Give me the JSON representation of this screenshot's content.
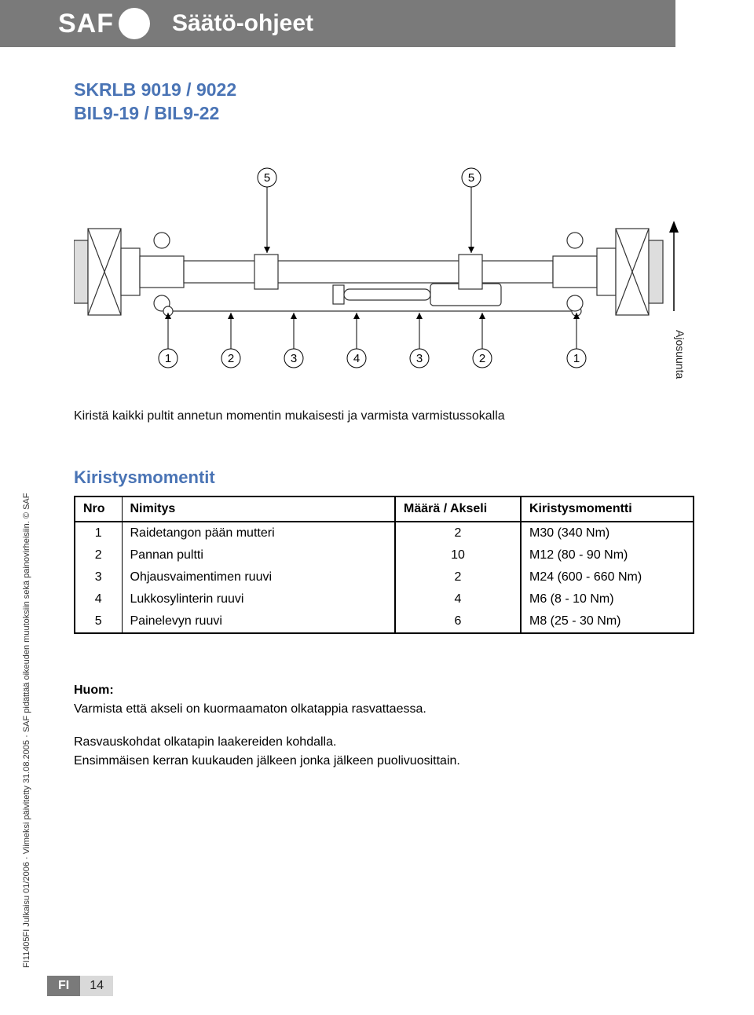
{
  "header": {
    "logo_text": "SAF",
    "title": "Säätö-ohjeet"
  },
  "model": {
    "line1": "SKRLB 9019 / 9022",
    "line2": "BIL9-19 / BIL9-22"
  },
  "diagram": {
    "ajosuunta_label": "Ajosuunta",
    "top_callouts": [
      "5",
      "5"
    ],
    "bottom_callouts": [
      "1",
      "2",
      "3",
      "4",
      "3",
      "2",
      "1"
    ],
    "callout_style": {
      "circle_radius": 12,
      "stroke_color": "#000000",
      "fill_color": "#ffffff",
      "font_size": 15,
      "line_color": "#000000"
    },
    "axle_style": {
      "outline_color": "#333333",
      "fill_color": "#ffffff",
      "hatch_color": "#888888"
    },
    "arrow_color": "#000000"
  },
  "instruction_text": "Kiristä kaikki pultit annetun momentin mukaisesti ja varmista varmistussokalla",
  "torque_section": {
    "title": "Kiristysmomentit",
    "columns": [
      "Nro",
      "Nimitys",
      "Määrä / Akseli",
      "Kiristysmomentti"
    ],
    "rows": [
      {
        "nro": "1",
        "name": "Raidetangon pään mutteri",
        "qty": "2",
        "torque": "M30 (340 Nm)"
      },
      {
        "nro": "2",
        "name": "Pannan pultti",
        "qty": "10",
        "torque": "M12 (80 - 90 Nm)"
      },
      {
        "nro": "3",
        "name": "Ohjausvaimentimen ruuvi",
        "qty": "2",
        "torque": "M24 (600 - 660 Nm)"
      },
      {
        "nro": "4",
        "name": "Lukkosylinterin ruuvi",
        "qty": "4",
        "torque": "M6 (8 - 10 Nm)"
      },
      {
        "nro": "5",
        "name": "Painelevyn ruuvi",
        "qty": "6",
        "torque": "M8 (25 - 30 Nm)"
      }
    ],
    "table_style": {
      "border_color": "#000000",
      "header_border_width": 2,
      "row_border_width": 0,
      "font_size": 16
    }
  },
  "note": {
    "label": "Huom:",
    "line1": "Varmista että akseli on kuormaamaton olkatappia rasvattaessa.",
    "line2": "Rasvauskohdat olkatapin laakereiden kohdalla.",
    "line3": "Ensimmäisen kerran kuukauden jälkeen jonka jälkeen puolivuosittain."
  },
  "sidebar": "FI11405FI Julkaisu 01/2006 · Viimeksi päivitetty 31.08.2005 · SAF pidättää oikeuden muutoksiin sekä painovirheisiin. © SAF",
  "footer": {
    "lang": "FI",
    "page": "14"
  },
  "colors": {
    "header_bg": "#7a7a7a",
    "accent": "#4a74b5",
    "page_bg": "#ffffff",
    "footer_page_bg": "#d9d9d9"
  }
}
